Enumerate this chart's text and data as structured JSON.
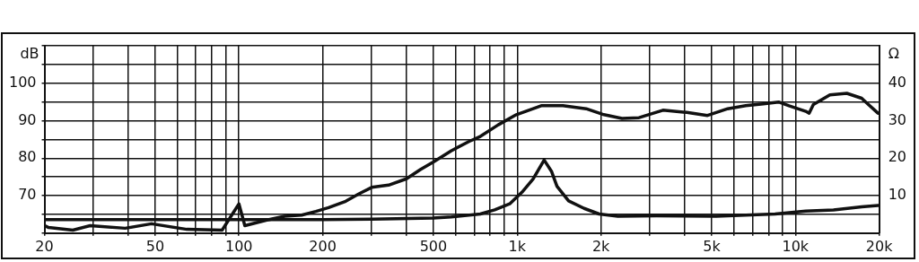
{
  "chart_data": {
    "type": "line",
    "log": "x",
    "ylabel": "dB",
    "y2label": "Ω",
    "grid": true,
    "xlim": [
      20,
      20000
    ],
    "xticks": [
      20,
      {
        "value": 30,
        "label": null
      },
      {
        "value": 40,
        "label": null
      },
      50,
      {
        "value": 60,
        "label": null
      },
      {
        "value": 70,
        "label": null
      },
      {
        "value": 80,
        "label": null
      },
      {
        "value": 90,
        "label": null
      },
      100,
      200,
      {
        "value": 300,
        "label": null
      },
      {
        "value": 400,
        "label": null
      },
      500,
      {
        "value": 600,
        "label": null
      },
      {
        "value": 700,
        "label": null
      },
      {
        "value": 800,
        "label": null
      },
      {
        "value": 900,
        "label": null
      },
      {
        "value": 1000,
        "label": "1k"
      },
      {
        "value": 2000,
        "label": "2k"
      },
      {
        "value": 3000,
        "label": null
      },
      {
        "value": 4000,
        "label": null
      },
      {
        "value": 5000,
        "label": "5k"
      },
      {
        "value": 6000,
        "label": null
      },
      {
        "value": 7000,
        "label": null
      },
      {
        "value": 8000,
        "label": null
      },
      {
        "value": 9000,
        "label": null
      },
      {
        "value": 10000,
        "label": "10k"
      },
      {
        "value": 20000,
        "label": "20k"
      }
    ],
    "ylim": [
      60,
      110
    ],
    "yticks": [
      {
        "value": 60,
        "label": null
      },
      {
        "value": 65,
        "label": null
      },
      70,
      {
        "value": 75,
        "label": null
      },
      80,
      {
        "value": 85,
        "label": null
      },
      90,
      {
        "value": 95,
        "label": null
      },
      100,
      {
        "value": 105,
        "label": null
      },
      {
        "value": 110,
        "label": null
      }
    ],
    "y2lim": [
      0,
      50
    ],
    "y2ticks": [
      10,
      20,
      30,
      40
    ],
    "series": [
      {
        "color": "#111111",
        "x": [
          20,
          20.7,
          25.3,
          29.2,
          39,
          48.5,
          65,
          87,
          100,
          105,
          126,
          146,
          168,
          189,
          210,
          242,
          270,
          300,
          345,
          400,
          450,
          500,
          580,
          673,
          737,
          855,
          993,
          1220,
          1460,
          1770,
          2050,
          2380,
          2740,
          3340,
          4070,
          4830,
          5710,
          6630,
          7670,
          8700,
          9480,
          10900,
          11200,
          11600,
          13300,
          15300,
          17300,
          18000,
          19800,
          20000
        ],
        "values": [
          62,
          61.5,
          60.8,
          62,
          61.3,
          62.5,
          61,
          60.8,
          67.8,
          62,
          63.5,
          64.5,
          64.8,
          65.8,
          66.8,
          68.5,
          70.5,
          72.2,
          72.8,
          74.5,
          77,
          79,
          82,
          84.5,
          85.8,
          88.9,
          91.6,
          94,
          94,
          93.2,
          91.6,
          90.6,
          90.8,
          92.8,
          92.2,
          91.4,
          93.2,
          94,
          94.5,
          95,
          94,
          92.5,
          92,
          94.3,
          96.9,
          97.3,
          96,
          94.8,
          92,
          92
        ]
      },
      {
        "color": "#111111",
        "axis": "y2",
        "x": [
          20,
          50,
          100,
          200,
          300,
          500,
          580,
          737,
          830,
          940,
          1040,
          1140,
          1250,
          1330,
          1390,
          1530,
          1740,
          1970,
          2300,
          3160,
          5190,
          8450,
          10900,
          13700,
          17300,
          19800,
          20000
        ],
        "values": [
          3.6,
          3.6,
          3.6,
          3.6,
          3.7,
          4.0,
          4.3,
          5.1,
          6.2,
          7.8,
          10.9,
          14.4,
          19.5,
          16.4,
          12.5,
          8.6,
          6.6,
          5.1,
          4.5,
          4.6,
          4.5,
          5.1,
          5.9,
          6.2,
          7.0,
          7.4,
          7.4
        ]
      }
    ]
  }
}
